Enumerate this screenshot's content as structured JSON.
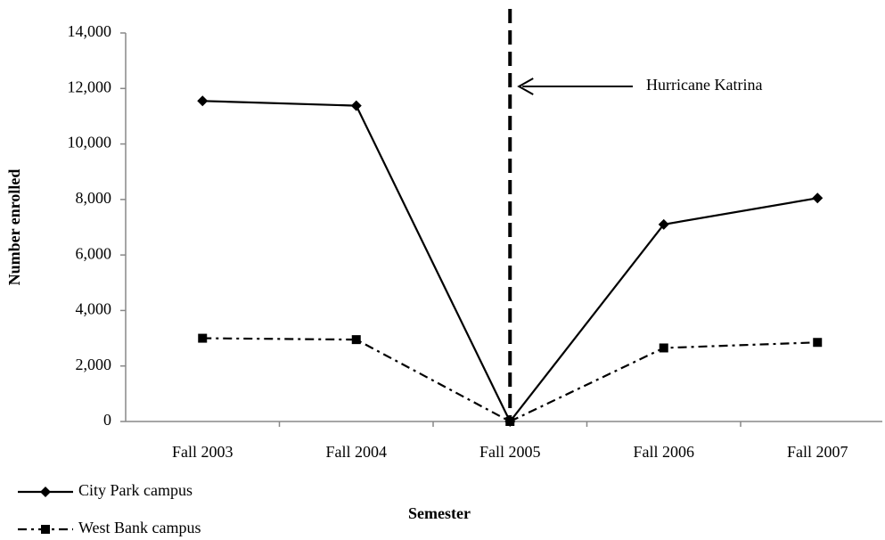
{
  "chart_data": {
    "type": "line",
    "xlabel": "Semester",
    "ylabel": "Number enrolled",
    "categories": [
      "Fall 2003",
      "Fall 2004",
      "Fall 2005",
      "Fall 2006",
      "Fall 2007"
    ],
    "series": [
      {
        "name": "City Park campus",
        "color": "#000000",
        "line_style": "solid",
        "marker": "diamond",
        "values": [
          11550,
          11380,
          0,
          7100,
          8050
        ]
      },
      {
        "name": "West Bank campus",
        "color": "#000000",
        "line_style": "dashdot",
        "marker": "square",
        "values": [
          3000,
          2950,
          0,
          2650,
          2850
        ]
      }
    ],
    "ylim": [
      0,
      14000
    ],
    "yticks": [
      0,
      {
        "value": 2000,
        "label": "2,000"
      },
      {
        "value": 4000,
        "label": "4,000"
      },
      {
        "value": 6000,
        "label": "6,000"
      },
      {
        "value": 8000,
        "label": "8,000"
      },
      {
        "value": 10000,
        "label": "10,000"
      },
      {
        "value": 12000,
        "label": "12,000"
      },
      {
        "value": 14000,
        "label": "14,000"
      }
    ],
    "grid": false,
    "legend": "bottom-left",
    "vline": {
      "x": "Fall 2005",
      "label": "Hurricane Katrina"
    }
  }
}
